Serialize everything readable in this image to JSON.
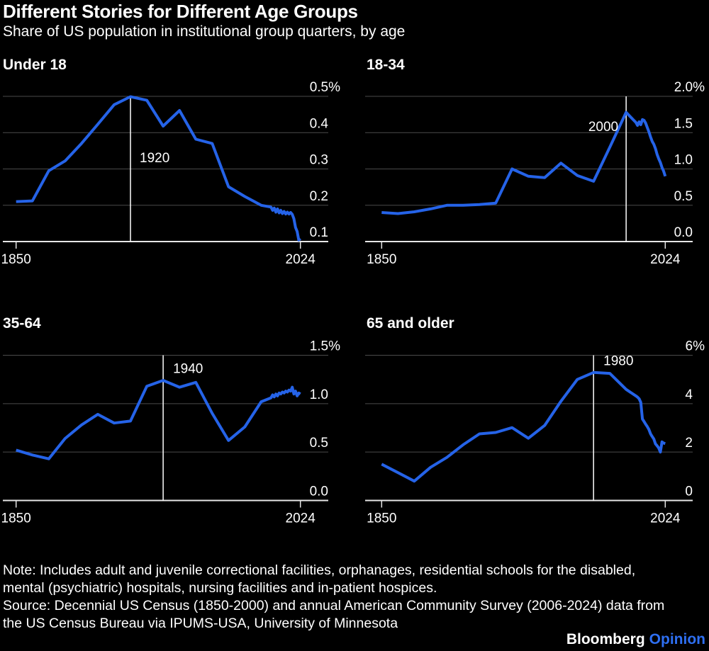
{
  "header": {
    "title": "Different Stories for Different Age Groups",
    "subtitle": "Share of US population in institutional group quarters, by age"
  },
  "colors": {
    "background": "#000000",
    "line": "#2563e8",
    "grid": "#4a4a4a",
    "axis": "#e6e6e6",
    "annotation_line": "#ffffff",
    "text": "#ffffff",
    "brand_opinion_blue": "#2e6ff2"
  },
  "chart_data": [
    {
      "type": "line",
      "title": "Under 18",
      "xlabel": "",
      "ylabel": "",
      "unit": "%",
      "grid": true,
      "xlim": [
        1850,
        2024
      ],
      "ylim": [
        0.1,
        0.5
      ],
      "x_ticks": [
        "1850",
        "2024"
      ],
      "x_tick_years": [
        1850,
        2024
      ],
      "y_ticks": [
        "0.1",
        "0.2",
        "0.3",
        "0.4",
        "0.5%"
      ],
      "annotation": {
        "year": 1920,
        "label": "1920"
      },
      "series": [
        [
          1850,
          0.21
        ],
        [
          1860,
          0.212
        ],
        [
          1870,
          0.295
        ],
        [
          1880,
          0.322
        ],
        [
          1890,
          0.37
        ],
        [
          1900,
          0.423
        ],
        [
          1910,
          0.477
        ],
        [
          1920,
          0.499
        ],
        [
          1930,
          0.489
        ],
        [
          1940,
          0.418
        ],
        [
          1950,
          0.461
        ],
        [
          1960,
          0.382
        ],
        [
          1970,
          0.37
        ],
        [
          1980,
          0.251
        ],
        [
          1990,
          0.224
        ],
        [
          2000,
          0.2
        ],
        [
          2006,
          0.195
        ],
        [
          2007,
          0.186
        ],
        [
          2008,
          0.192
        ],
        [
          2009,
          0.181
        ],
        [
          2010,
          0.19
        ],
        [
          2011,
          0.179
        ],
        [
          2012,
          0.186
        ],
        [
          2013,
          0.177
        ],
        [
          2014,
          0.183
        ],
        [
          2015,
          0.176
        ],
        [
          2016,
          0.181
        ],
        [
          2017,
          0.176
        ],
        [
          2018,
          0.18
        ],
        [
          2019,
          0.175
        ],
        [
          2020,
          0.163
        ],
        [
          2021,
          0.139
        ],
        [
          2022,
          0.128
        ],
        [
          2023,
          0.104
        ],
        [
          2024,
          0.108
        ]
      ]
    },
    {
      "type": "line",
      "title": "18-34",
      "xlabel": "",
      "ylabel": "",
      "unit": "%",
      "grid": true,
      "xlim": [
        1850,
        2024
      ],
      "ylim": [
        0.0,
        2.0
      ],
      "x_ticks": [
        "1850",
        "2024"
      ],
      "x_tick_years": [
        1850,
        2024
      ],
      "y_ticks": [
        "0.0",
        "0.5",
        "1.0",
        "1.5",
        "2.0%"
      ],
      "annotation": {
        "year": 2000,
        "label": "2000"
      },
      "series": [
        [
          1850,
          0.4
        ],
        [
          1860,
          0.385
        ],
        [
          1870,
          0.41
        ],
        [
          1880,
          0.45
        ],
        [
          1890,
          0.5
        ],
        [
          1900,
          0.5
        ],
        [
          1910,
          0.51
        ],
        [
          1920,
          0.53
        ],
        [
          1930,
          1.0
        ],
        [
          1940,
          0.9
        ],
        [
          1950,
          0.88
        ],
        [
          1960,
          1.08
        ],
        [
          1970,
          0.91
        ],
        [
          1980,
          0.83
        ],
        [
          1990,
          1.3
        ],
        [
          2000,
          1.78
        ],
        [
          2006,
          1.64
        ],
        [
          2007,
          1.6
        ],
        [
          2008,
          1.65
        ],
        [
          2009,
          1.61
        ],
        [
          2010,
          1.68
        ],
        [
          2011,
          1.67
        ],
        [
          2012,
          1.63
        ],
        [
          2013,
          1.57
        ],
        [
          2014,
          1.51
        ],
        [
          2015,
          1.44
        ],
        [
          2016,
          1.38
        ],
        [
          2017,
          1.34
        ],
        [
          2018,
          1.28
        ],
        [
          2019,
          1.2
        ],
        [
          2020,
          1.14
        ],
        [
          2021,
          1.09
        ],
        [
          2022,
          1.02
        ],
        [
          2023,
          0.97
        ],
        [
          2024,
          0.9
        ]
      ]
    },
    {
      "type": "line",
      "title": "35-64",
      "xlabel": "",
      "ylabel": "",
      "unit": "%",
      "grid": true,
      "xlim": [
        1850,
        2024
      ],
      "ylim": [
        0.0,
        1.5
      ],
      "x_ticks": [
        "1850",
        "2024"
      ],
      "x_tick_years": [
        1850,
        2024
      ],
      "y_ticks": [
        "0.0",
        "0.5",
        "1.0",
        "1.5%"
      ],
      "annotation": {
        "year": 1940,
        "label": "1940"
      },
      "series": [
        [
          1850,
          0.52
        ],
        [
          1860,
          0.47
        ],
        [
          1870,
          0.43
        ],
        [
          1880,
          0.64
        ],
        [
          1890,
          0.78
        ],
        [
          1900,
          0.89
        ],
        [
          1910,
          0.8
        ],
        [
          1920,
          0.82
        ],
        [
          1930,
          1.18
        ],
        [
          1940,
          1.24
        ],
        [
          1950,
          1.17
        ],
        [
          1960,
          1.22
        ],
        [
          1970,
          0.9
        ],
        [
          1980,
          0.62
        ],
        [
          1990,
          0.76
        ],
        [
          2000,
          1.02
        ],
        [
          2006,
          1.06
        ],
        [
          2007,
          1.09
        ],
        [
          2008,
          1.07
        ],
        [
          2009,
          1.1
        ],
        [
          2010,
          1.08
        ],
        [
          2011,
          1.11
        ],
        [
          2012,
          1.1
        ],
        [
          2013,
          1.12
        ],
        [
          2014,
          1.11
        ],
        [
          2015,
          1.13
        ],
        [
          2016,
          1.12
        ],
        [
          2017,
          1.14
        ],
        [
          2018,
          1.13
        ],
        [
          2019,
          1.17
        ],
        [
          2020,
          1.1
        ],
        [
          2021,
          1.13
        ],
        [
          2022,
          1.08
        ],
        [
          2023,
          1.11
        ],
        [
          2024,
          1.1
        ]
      ]
    },
    {
      "type": "line",
      "title": "65 and older",
      "xlabel": "",
      "ylabel": "",
      "unit": "%",
      "grid": true,
      "xlim": [
        1850,
        2024
      ],
      "ylim": [
        0,
        6
      ],
      "x_ticks": [
        "1850",
        "2024"
      ],
      "x_tick_years": [
        1850,
        2024
      ],
      "y_ticks": [
        "0",
        "2",
        "4",
        "6%"
      ],
      "annotation": {
        "year": 1980,
        "label": "1980"
      },
      "series": [
        [
          1850,
          1.5
        ],
        [
          1860,
          1.15
        ],
        [
          1870,
          0.8
        ],
        [
          1880,
          1.37
        ],
        [
          1890,
          1.78
        ],
        [
          1900,
          2.3
        ],
        [
          1910,
          2.75
        ],
        [
          1920,
          2.81
        ],
        [
          1930,
          3.01
        ],
        [
          1940,
          2.57
        ],
        [
          1950,
          3.1
        ],
        [
          1960,
          4.1
        ],
        [
          1970,
          5.0
        ],
        [
          1980,
          5.29
        ],
        [
          1990,
          5.25
        ],
        [
          2000,
          4.59
        ],
        [
          2006,
          4.32
        ],
        [
          2007,
          4.27
        ],
        [
          2008,
          4.2
        ],
        [
          2009,
          4.05
        ],
        [
          2010,
          3.37
        ],
        [
          2011,
          3.26
        ],
        [
          2012,
          3.15
        ],
        [
          2013,
          3.05
        ],
        [
          2014,
          2.93
        ],
        [
          2015,
          2.75
        ],
        [
          2016,
          2.64
        ],
        [
          2017,
          2.54
        ],
        [
          2018,
          2.34
        ],
        [
          2019,
          2.26
        ],
        [
          2020,
          2.17
        ],
        [
          2021,
          2.0
        ],
        [
          2022,
          2.42
        ],
        [
          2023,
          2.37
        ],
        [
          2024,
          2.35
        ]
      ]
    }
  ],
  "footer": {
    "note_line1": "Note: Includes adult and juvenile correctional facilities, orphanages, residential schools for the disabled,",
    "note_line2": "mental (psychiatric) hospitals, nursing facilities and in-patient hospices.",
    "source_line1": "Source: Decennial US Census (1850-2000) and annual American Community Survey (2006-2024) data from",
    "source_line2": "the US Census Bureau via IPUMS-USA, University of Minnesota",
    "brand": "Bloomberg",
    "brand_suffix": "Opinion"
  }
}
